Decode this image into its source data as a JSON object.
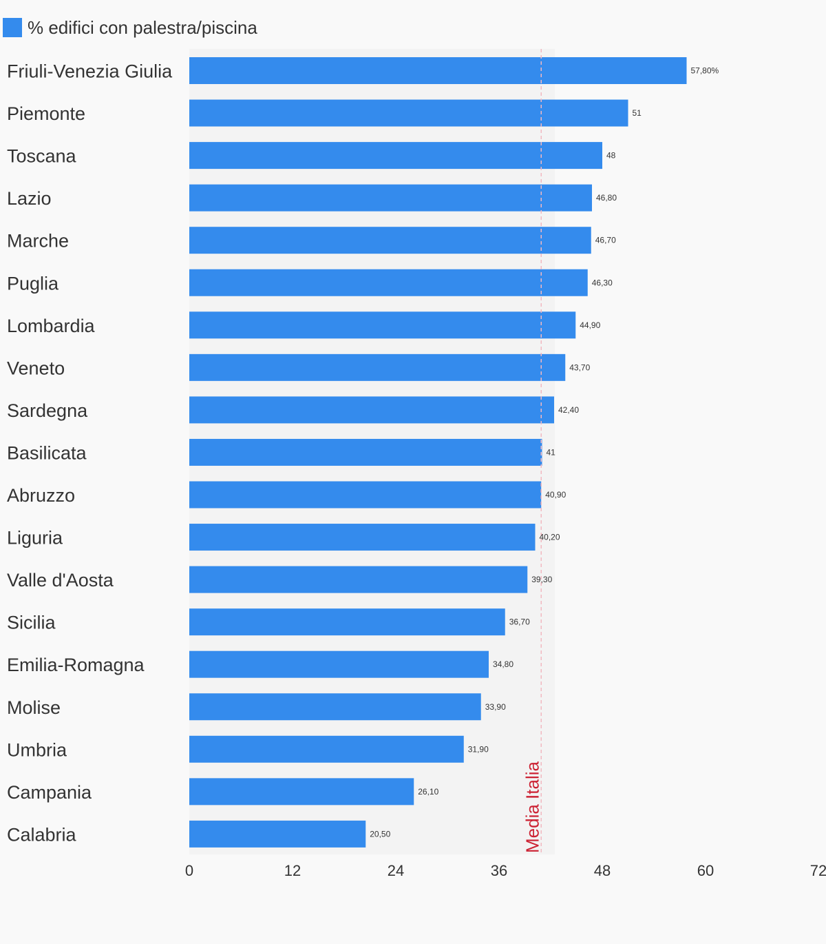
{
  "chart_data": {
    "type": "bar",
    "orientation": "horizontal",
    "categories": [
      "Friuli-Venezia Giulia",
      "Piemonte",
      "Toscana",
      "Lazio",
      "Marche",
      "Puglia",
      "Lombardia",
      "Veneto",
      "Sardegna",
      "Basilicata",
      "Abruzzo",
      "Liguria",
      "Valle d'Aosta",
      "Sicilia",
      "Emilia-Romagna",
      "Molise",
      "Umbria",
      "Campania",
      "Calabria"
    ],
    "series": [
      {
        "name": "% edifici con palestra/piscina",
        "color": "#348bed",
        "values": [
          57.8,
          51,
          48,
          46.8,
          46.7,
          46.3,
          44.9,
          43.7,
          42.4,
          41,
          40.9,
          40.2,
          39.3,
          36.7,
          34.8,
          33.9,
          31.9,
          26.1,
          20.5
        ],
        "value_labels": [
          "57,80%",
          "51",
          "48",
          "46,80",
          "46,70",
          "46,30",
          "44,90",
          "43,70",
          "42,40",
          "41",
          "40,90",
          "40,20",
          "39,30",
          "36,70",
          "34,80",
          "33,90",
          "31,90",
          "26,10",
          "20,50"
        ]
      }
    ],
    "xlim": [
      0,
      72
    ],
    "x_ticks": [
      0,
      12,
      24,
      36,
      48,
      60,
      72
    ],
    "reference_line": {
      "label": "Media Italia",
      "value": 40.9,
      "color": "#cc2233"
    },
    "legend": "top-left",
    "grid": false,
    "plot_background": "#f3f3f3"
  }
}
